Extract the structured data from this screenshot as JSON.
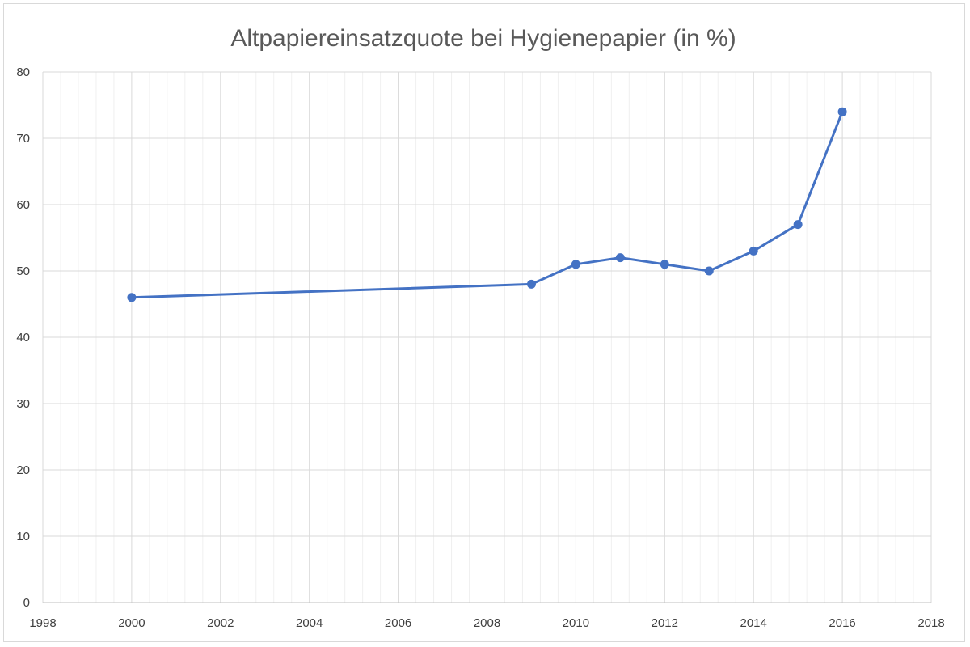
{
  "chart_data": {
    "type": "scatter",
    "title": "Altpapiereinsatzquote bei Hygienepapier (in %)",
    "xlabel": "",
    "ylabel": "",
    "xlim": [
      1998,
      2018
    ],
    "ylim": [
      0,
      80
    ],
    "x_ticks": [
      1998,
      2000,
      2002,
      2004,
      2006,
      2008,
      2010,
      2012,
      2014,
      2016,
      2018
    ],
    "x_tick_labels": [
      "1998",
      "2000",
      "2002",
      "2004",
      "2006",
      "2008",
      "2010",
      "2012",
      "2014",
      "2016",
      "2018"
    ],
    "y_ticks": [
      0,
      10,
      20,
      30,
      40,
      50,
      60,
      70,
      80
    ],
    "y_tick_labels": [
      "0",
      "10",
      "20",
      "30",
      "40",
      "50",
      "60",
      "70",
      "80"
    ],
    "grid": true,
    "minor_grid_x": true,
    "legend": "none",
    "series": [
      {
        "x": [
          2000,
          2009,
          2010,
          2011,
          2012,
          2013,
          2014,
          2015,
          2016
        ],
        "y": [
          46,
          48,
          51,
          52,
          51,
          50,
          53,
          57,
          74
        ],
        "color": "#4472c4",
        "mode": "lines+markers"
      }
    ]
  },
  "colors": {
    "major_grid": "#d9d9d9",
    "minor_grid": "#f0f0f0",
    "axis": "#bfbfbf",
    "title": "#595959",
    "tick_text": "#404040"
  }
}
